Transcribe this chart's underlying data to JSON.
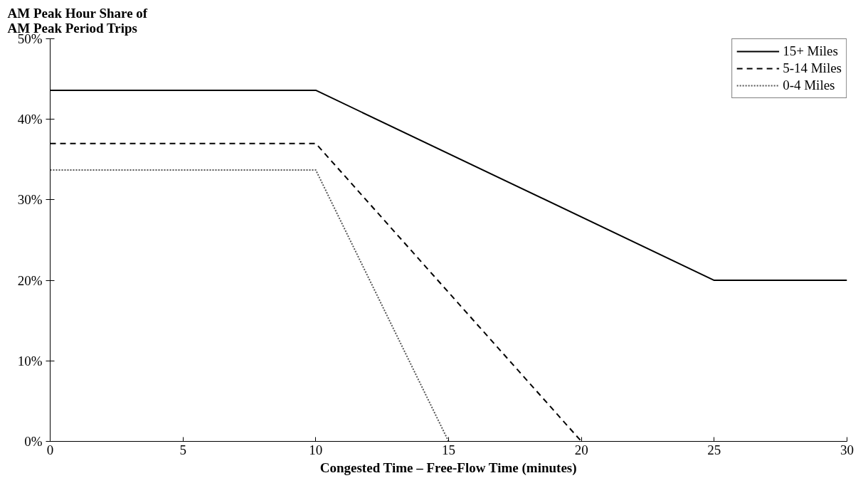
{
  "chart_data": {
    "type": "line",
    "ylabel": "AM Peak Hour Share of\nAM Peak Period Trips",
    "xlabel": "Congested Time – Free-Flow Time (minutes)",
    "series": [
      {
        "name": "15+ Miles",
        "color": "#000000",
        "line_style": "solid",
        "x": [
          0,
          10,
          25,
          30
        ],
        "values": [
          43.6,
          43.6,
          20,
          20
        ]
      },
      {
        "name": "5-14 Miles",
        "color": "#000000",
        "line_style": "dashed",
        "x": [
          0,
          10,
          20
        ],
        "values": [
          37,
          37,
          0
        ]
      },
      {
        "name": "0-4 Miles",
        "color": "#555555",
        "line_style": "dotted",
        "x": [
          0,
          10,
          15
        ],
        "values": [
          33.7,
          33.7,
          0
        ]
      }
    ],
    "xlim": [
      0,
      30
    ],
    "xticks": [
      0,
      5,
      10,
      15,
      20,
      25,
      30
    ],
    "ylim": [
      0,
      50
    ],
    "yticks": [
      {
        "value": 0,
        "label": "0%"
      },
      {
        "value": 10,
        "label": "10%"
      },
      {
        "value": 20,
        "label": "20%"
      },
      {
        "value": 30,
        "label": "30%"
      },
      {
        "value": 40,
        "label": "40%"
      },
      {
        "value": 50,
        "label": "50%"
      }
    ],
    "grid": false,
    "legend": "top right",
    "marker": "none"
  }
}
